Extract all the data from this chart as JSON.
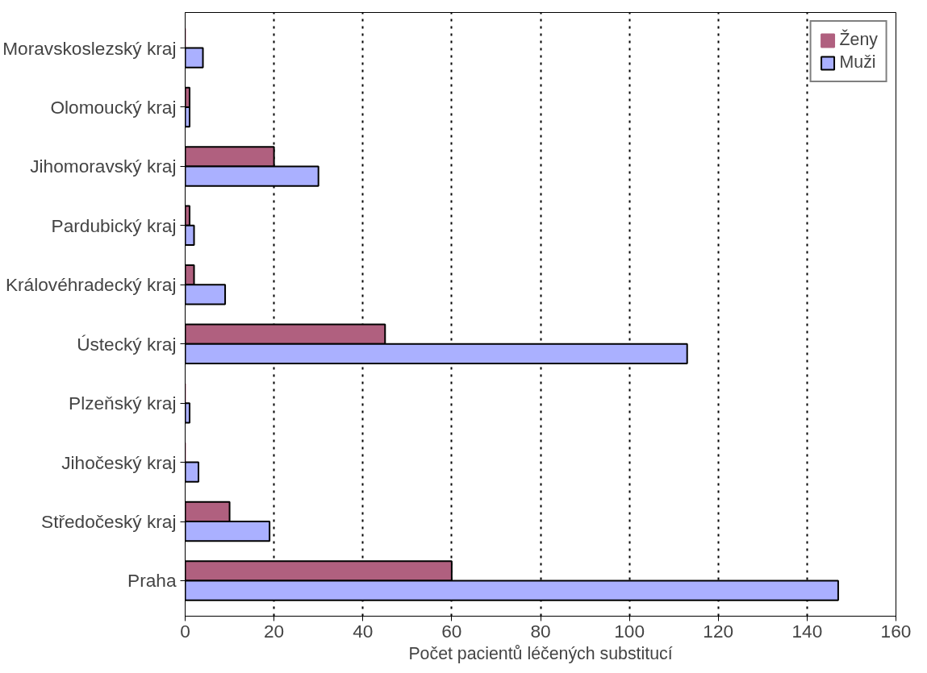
{
  "chart_data": {
    "type": "bar",
    "orientation": "horizontal",
    "xlabel": "Počet pacientů léčených substitucí",
    "categories": [
      "Moravskoslezský kraj",
      "Olomoucký kraj",
      "Jihomoravský kraj",
      "Pardubický kraj",
      "Královéhradecký kraj",
      "Ústecký kraj",
      "Plzeňský kraj",
      "Jihočeský kraj",
      "Středočeský kraj",
      "Praha"
    ],
    "series": [
      {
        "name": "Ženy",
        "color": "#b0607f",
        "values": [
          0,
          1,
          20,
          1,
          2,
          45,
          0,
          0,
          10,
          60
        ]
      },
      {
        "name": "Muži",
        "color": "#aab0ff",
        "values": [
          4,
          1,
          30,
          2,
          9,
          113,
          1,
          3,
          19,
          147
        ]
      }
    ],
    "xlim": [
      0,
      160
    ],
    "xticks": [
      0,
      20,
      40,
      60,
      80,
      100,
      120,
      140,
      160
    ],
    "grid": "x",
    "line_style": "dotted",
    "legend": "top right"
  }
}
